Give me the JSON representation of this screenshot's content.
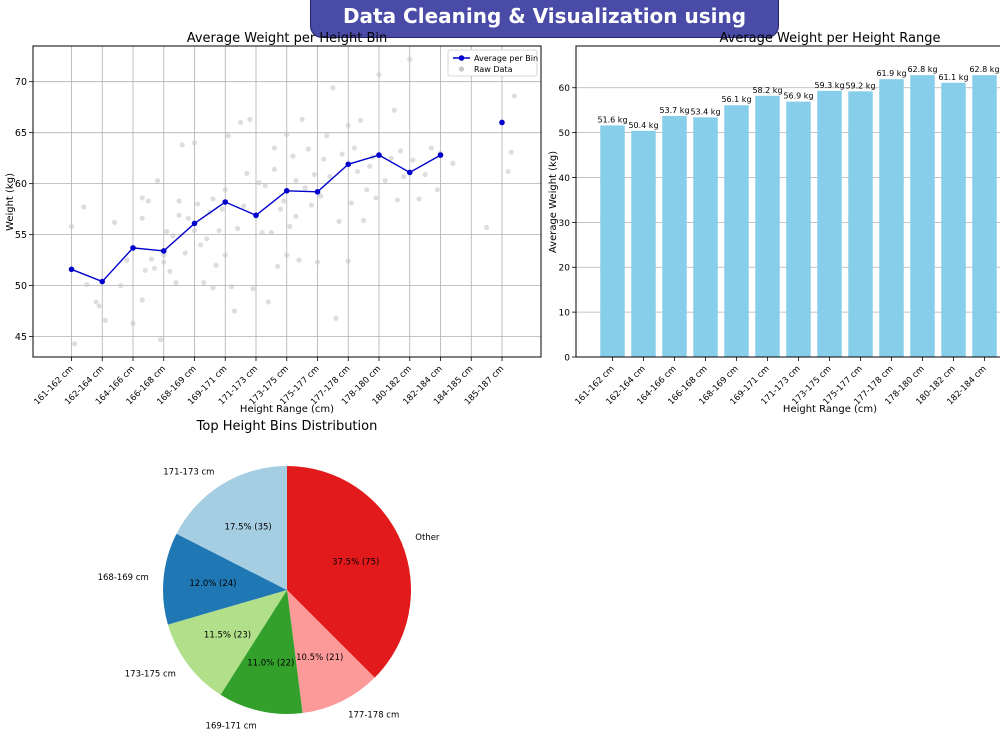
{
  "header": {
    "title": "Data Cleaning & Visualization using Python"
  },
  "chart_data": [
    {
      "type": "line",
      "title": "Average Weight per Height Bin",
      "xlabel": "Height Range (cm)",
      "ylabel": "Weight (kg)",
      "categories": [
        "161-162 cm",
        "162-164 cm",
        "164-166 cm",
        "166-168 cm",
        "168-169 cm",
        "169-171 cm",
        "171-173 cm",
        "173-175 cm",
        "175-177 cm",
        "177-178 cm",
        "178-180 cm",
        "180-182 cm",
        "182-184 cm",
        "184-185 cm",
        "185-187 cm"
      ],
      "ylim": [
        43,
        73.5
      ],
      "yticks": [
        45,
        50,
        55,
        60,
        65,
        70
      ],
      "grid": true,
      "legend": {
        "position": "top-right",
        "entries": [
          "Average per Bin",
          "Raw Data"
        ]
      },
      "series": [
        {
          "name": "Average per Bin",
          "color": "#0000cc",
          "values": [
            51.6,
            50.4,
            53.7,
            53.4,
            56.1,
            58.2,
            56.9,
            59.3,
            59.2,
            61.9,
            62.8,
            61.1,
            62.8,
            null,
            66.0
          ]
        },
        {
          "name": "Raw Data",
          "color": "#c8c8c8",
          "points": [
            [
              0,
              55.8
            ],
            [
              0.1,
              44.3
            ],
            [
              0.4,
              57.7
            ],
            [
              0.5,
              50.1
            ],
            [
              0.8,
              48.4
            ],
            [
              0.9,
              48.0
            ],
            [
              1.1,
              46.6
            ],
            [
              1.4,
              56.2
            ],
            [
              1.6,
              50.0
            ],
            [
              1.8,
              52.5
            ],
            [
              2.0,
              46.3
            ],
            [
              2.3,
              56.6
            ],
            [
              2.3,
              58.6
            ],
            [
              2.3,
              48.6
            ],
            [
              2.4,
              51.5
            ],
            [
              2.5,
              58.3
            ],
            [
              2.6,
              52.6
            ],
            [
              2.7,
              51.7
            ],
            [
              2.8,
              60.3
            ],
            [
              2.9,
              44.7
            ],
            [
              3.0,
              52.3
            ],
            [
              3.0,
              53.0
            ],
            [
              3.1,
              55.3
            ],
            [
              3.2,
              51.4
            ],
            [
              3.3,
              54.9
            ],
            [
              3.4,
              50.3
            ],
            [
              3.5,
              56.9
            ],
            [
              3.5,
              58.3
            ],
            [
              3.6,
              63.8
            ],
            [
              3.7,
              53.2
            ],
            [
              3.8,
              56.6
            ],
            [
              4.0,
              64.0
            ],
            [
              4.0,
              55.4
            ],
            [
              4.1,
              58.0
            ],
            [
              4.2,
              54.0
            ],
            [
              4.3,
              50.3
            ],
            [
              4.4,
              54.6
            ],
            [
              4.5,
              57.2
            ],
            [
              4.6,
              58.5
            ],
            [
              4.6,
              49.8
            ],
            [
              4.7,
              52.0
            ],
            [
              4.8,
              55.4
            ],
            [
              4.9,
              57.5
            ],
            [
              5.0,
              59.4
            ],
            [
              5.0,
              53.0
            ],
            [
              5.1,
              64.7
            ],
            [
              5.2,
              49.9
            ],
            [
              5.3,
              47.5
            ],
            [
              5.4,
              55.6
            ],
            [
              5.5,
              66.0
            ],
            [
              5.6,
              57.8
            ],
            [
              5.7,
              61.0
            ],
            [
              5.8,
              66.3
            ],
            [
              5.9,
              49.7
            ],
            [
              6.0,
              56.8
            ],
            [
              6.1,
              60.1
            ],
            [
              6.2,
              55.2
            ],
            [
              6.3,
              59.8
            ],
            [
              6.4,
              48.4
            ],
            [
              6.5,
              55.2
            ],
            [
              6.6,
              61.4
            ],
            [
              6.6,
              63.5
            ],
            [
              6.7,
              51.9
            ],
            [
              6.8,
              57.5
            ],
            [
              6.9,
              58.3
            ],
            [
              7.0,
              64.8
            ],
            [
              7.0,
              53.0
            ],
            [
              7.1,
              55.8
            ],
            [
              7.2,
              62.7
            ],
            [
              7.3,
              60.3
            ],
            [
              7.3,
              56.8
            ],
            [
              7.4,
              52.5
            ],
            [
              7.5,
              66.3
            ],
            [
              7.6,
              59.6
            ],
            [
              7.7,
              63.4
            ],
            [
              7.8,
              57.9
            ],
            [
              7.9,
              60.9
            ],
            [
              8.0,
              52.3
            ],
            [
              8.1,
              58.8
            ],
            [
              8.2,
              62.4
            ],
            [
              8.3,
              64.7
            ],
            [
              8.4,
              60.7
            ],
            [
              8.5,
              69.4
            ],
            [
              8.6,
              46.8
            ],
            [
              8.7,
              56.3
            ],
            [
              8.8,
              62.9
            ],
            [
              9.0,
              65.7
            ],
            [
              9.0,
              52.4
            ],
            [
              9.1,
              58.1
            ],
            [
              9.2,
              63.5
            ],
            [
              9.3,
              61.2
            ],
            [
              9.4,
              66.2
            ],
            [
              9.5,
              56.4
            ],
            [
              9.6,
              59.4
            ],
            [
              9.7,
              61.7
            ],
            [
              9.8,
              62.6
            ],
            [
              9.9,
              58.6
            ],
            [
              10.0,
              70.7
            ],
            [
              10.2,
              60.3
            ],
            [
              10.4,
              62.5
            ],
            [
              10.5,
              67.2
            ],
            [
              10.6,
              58.4
            ],
            [
              10.7,
              63.2
            ],
            [
              10.8,
              60.7
            ],
            [
              11.0,
              72.2
            ],
            [
              11.1,
              62.3
            ],
            [
              11.3,
              58.5
            ],
            [
              11.5,
              60.9
            ],
            [
              11.7,
              63.5
            ],
            [
              11.9,
              59.4
            ],
            [
              12.0,
              63.0
            ],
            [
              12.4,
              62.0
            ],
            [
              13.5,
              55.7
            ],
            [
              14.3,
              63.1
            ],
            [
              14.4,
              68.6
            ],
            [
              14.2,
              61.2
            ]
          ]
        }
      ]
    },
    {
      "type": "bar",
      "title": "Average Weight per Height Range",
      "xlabel": "Height Range (cm)",
      "ylabel": "Average Weight (kg)",
      "categories": [
        "161-162 cm",
        "162-164 cm",
        "164-166 cm",
        "166-168 cm",
        "168-169 cm",
        "169-171 cm",
        "171-173 cm",
        "173-175 cm",
        "175-177 cm",
        "177-178 cm",
        "178-180 cm",
        "180-182 cm",
        "182-184 cm",
        "184-185 cm",
        "185-187 cm"
      ],
      "values": [
        51.6,
        50.4,
        53.7,
        53.4,
        56.1,
        58.2,
        56.9,
        59.3,
        59.2,
        61.9,
        62.8,
        61.1,
        62.8,
        null,
        66.0
      ],
      "data_labels": [
        "51.6 kg",
        "50.4 kg",
        "53.7 kg",
        "53.4 kg",
        "56.1 kg",
        "58.2 kg",
        "56.9 kg",
        "59.3 kg",
        "59.2 kg",
        "61.9 kg",
        "62.8 kg",
        "61.1 kg",
        "62.8 kg",
        "",
        ""
      ],
      "ylim": [
        0,
        69.3
      ],
      "yticks": [
        0,
        10,
        20,
        30,
        40,
        50,
        60
      ],
      "grid": true,
      "color": "#87ceeb"
    },
    {
      "type": "pie",
      "title": "Top Height Bins Distribution",
      "slices": [
        {
          "label": "Other",
          "value": 75,
          "pct": "37.5% (75)",
          "color": "#e31a1c"
        },
        {
          "label": "177-178 cm",
          "value": 21,
          "pct": "10.5% (21)",
          "color": "#fb9a99"
        },
        {
          "label": "169-171 cm",
          "value": 22,
          "pct": "11.0% (22)",
          "color": "#33a02c"
        },
        {
          "label": "173-175 cm",
          "value": 23,
          "pct": "11.5% (23)",
          "color": "#b2df8a"
        },
        {
          "label": "168-169 cm",
          "value": 24,
          "pct": "12.0% (24)",
          "color": "#1f78b4"
        },
        {
          "label": "171-173 cm",
          "value": 35,
          "pct": "17.5% (35)",
          "color": "#a6cee3"
        }
      ]
    }
  ]
}
